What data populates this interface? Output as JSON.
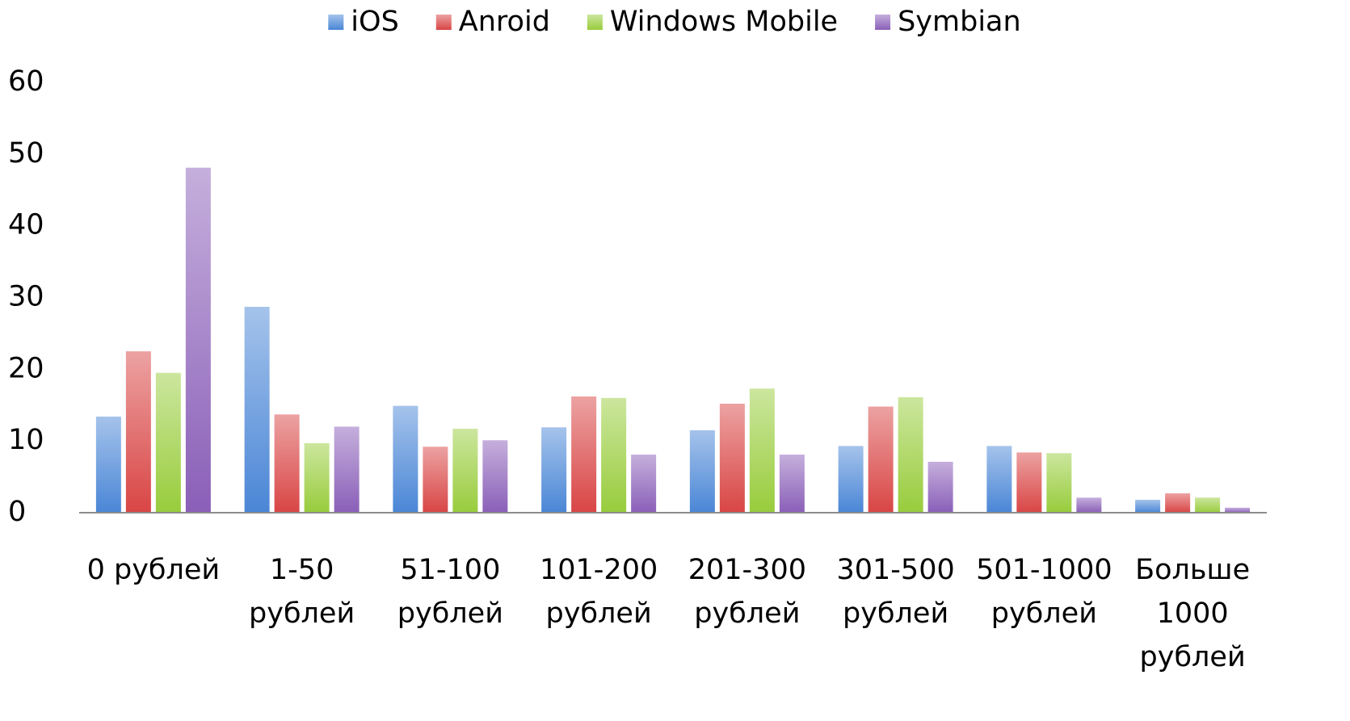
{
  "chart_data": {
    "type": "bar",
    "categories": [
      [
        "0 рублей"
      ],
      [
        "1-50",
        "рублей"
      ],
      [
        "51-100",
        "рублей"
      ],
      [
        "101-200",
        "рублей"
      ],
      [
        "201-300",
        "рублей"
      ],
      [
        "301-500",
        "рублей"
      ],
      [
        "501-1000",
        "рублей"
      ],
      [
        "Больше",
        "1000",
        "рублей"
      ]
    ],
    "series": [
      {
        "name": "iOS",
        "color": "#4a86d6",
        "values": [
          13.4,
          28.7,
          14.9,
          11.9,
          11.5,
          9.3,
          9.3,
          1.8
        ]
      },
      {
        "name": "Anroid",
        "color": "#d94545",
        "values": [
          22.5,
          13.7,
          9.2,
          16.2,
          15.2,
          14.8,
          8.4,
          2.7
        ]
      },
      {
        "name": "Windows Mobile",
        "color": "#98cc3c",
        "values": [
          19.5,
          9.7,
          11.7,
          16.0,
          17.3,
          16.1,
          8.3,
          2.1
        ]
      },
      {
        "name": "Symbian",
        "color": "#8a5fb8",
        "values": [
          48.1,
          12.0,
          10.1,
          8.1,
          8.1,
          7.1,
          2.1,
          0.7
        ]
      }
    ],
    "ylim": [
      0,
      60
    ],
    "yticks": [
      0,
      10,
      20,
      30,
      40,
      50,
      60
    ],
    "grid": false,
    "legend": "top"
  }
}
